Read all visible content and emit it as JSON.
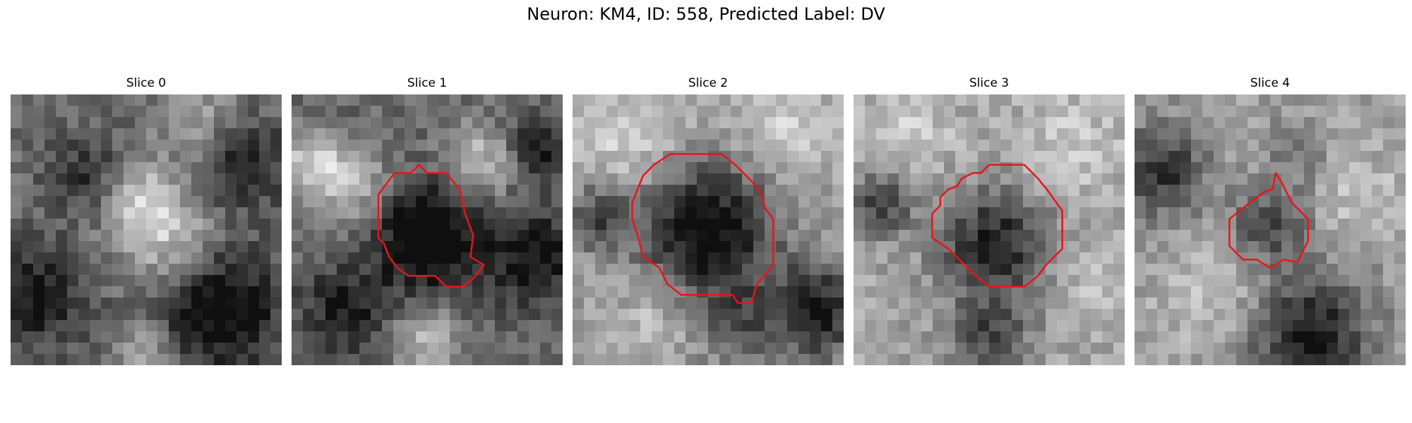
{
  "figure": {
    "title": "Neuron: KM4, ID: 558, Predicted Label: DV"
  },
  "contour_color": "#e8141c",
  "slices": [
    {
      "title": "Slice 0",
      "has_contour": false
    },
    {
      "title": "Slice 1",
      "has_contour": true
    },
    {
      "title": "Slice 2",
      "has_contour": true
    },
    {
      "title": "Slice 3",
      "has_contour": true
    },
    {
      "title": "Slice 4",
      "has_contour": true
    }
  ]
}
